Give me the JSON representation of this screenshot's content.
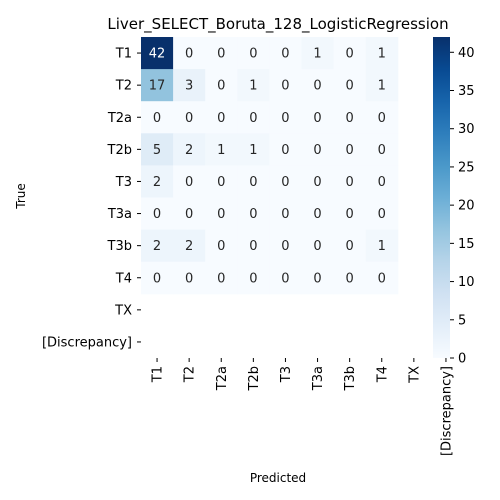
{
  "chart_data": {
    "type": "heatmap",
    "title": "Liver_SELECT_Boruta_128_LogisticRegression",
    "xlabel": "Predicted",
    "ylabel": "True",
    "rows": [
      "T1",
      "T2",
      "T2a",
      "T2b",
      "T3",
      "T3a",
      "T3b",
      "T4",
      "TX",
      "[Discrepancy]"
    ],
    "columns": [
      "T1",
      "T2",
      "T2a",
      "T2b",
      "T3",
      "T3a",
      "T3b",
      "T4",
      "TX",
      "[Discrepancy]"
    ],
    "values": [
      [
        42,
        0,
        0,
        0,
        0,
        1,
        0,
        1,
        null,
        null
      ],
      [
        17,
        3,
        0,
        1,
        0,
        0,
        0,
        1,
        null,
        null
      ],
      [
        0,
        0,
        0,
        0,
        0,
        0,
        0,
        0,
        null,
        null
      ],
      [
        5,
        2,
        1,
        1,
        0,
        0,
        0,
        0,
        null,
        null
      ],
      [
        2,
        0,
        0,
        0,
        0,
        0,
        0,
        0,
        null,
        null
      ],
      [
        0,
        0,
        0,
        0,
        0,
        0,
        0,
        0,
        null,
        null
      ],
      [
        2,
        2,
        0,
        0,
        0,
        0,
        0,
        1,
        null,
        null
      ],
      [
        0,
        0,
        0,
        0,
        0,
        0,
        0,
        0,
        null,
        null
      ],
      [
        null,
        null,
        null,
        null,
        null,
        null,
        null,
        null,
        null,
        null
      ],
      [
        null,
        null,
        null,
        null,
        null,
        null,
        null,
        null,
        null,
        null
      ]
    ],
    "colormap": "Blues",
    "colorbar": {
      "range": [
        0,
        42
      ],
      "ticks": [
        0,
        5,
        10,
        15,
        20,
        25,
        30,
        35,
        40
      ]
    }
  }
}
